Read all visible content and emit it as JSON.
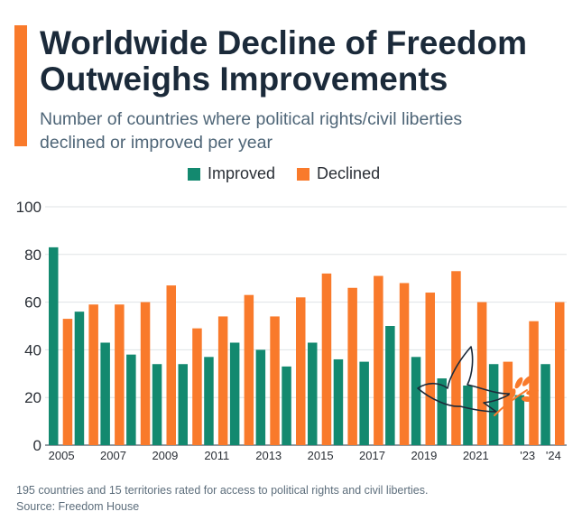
{
  "header": {
    "title_line1": "Worldwide Decline of Freedom",
    "title_line2": "Outweighs Improvements",
    "subtitle_line1": "Number of countries where political rights/civil liberties",
    "subtitle_line2": "declined or improved per year"
  },
  "legend": {
    "improved_label": "Improved",
    "declined_label": "Declined"
  },
  "colors": {
    "improved": "#13896f",
    "declined": "#f97a2b",
    "accent": "#f97a2b",
    "title": "#1b2a3a",
    "dove": "#1b2a3a"
  },
  "chart_data": {
    "type": "bar",
    "title": "Worldwide Decline of Freedom Outweighs Improvements",
    "subtitle": "Number of countries where political rights/civil liberties declined or improved per year",
    "categories": [
      "2005",
      "2006",
      "2007",
      "2008",
      "2009",
      "2010",
      "2011",
      "2012",
      "2013",
      "2014",
      "2015",
      "2016",
      "2017",
      "2018",
      "2019",
      "2020",
      "2021",
      "2022",
      "2023",
      "2024"
    ],
    "tick_labels": [
      "2005",
      "",
      "2007",
      "",
      "2009",
      "",
      "2011",
      "",
      "2013",
      "",
      "2015",
      "",
      "2017",
      "",
      "2019",
      "",
      "2021",
      "",
      "'23",
      "'24"
    ],
    "series": [
      {
        "name": "Improved",
        "values": [
          83,
          56,
          43,
          38,
          34,
          34,
          37,
          43,
          40,
          33,
          43,
          36,
          35,
          50,
          37,
          28,
          25,
          34,
          21,
          34
        ]
      },
      {
        "name": "Declined",
        "values": [
          53,
          59,
          59,
          60,
          67,
          49,
          54,
          63,
          54,
          62,
          72,
          66,
          71,
          68,
          64,
          73,
          60,
          35,
          52,
          60
        ]
      }
    ],
    "ylim": [
      0,
      100
    ],
    "yticks": [
      0,
      20,
      40,
      60,
      80,
      100
    ],
    "xlabel": "",
    "ylabel": "",
    "grid": true,
    "legend_position": "top-center"
  },
  "footer": {
    "note": "195 countries and 15 territories rated for access to political rights and civil liberties.",
    "source": "Source: Freedom House"
  }
}
